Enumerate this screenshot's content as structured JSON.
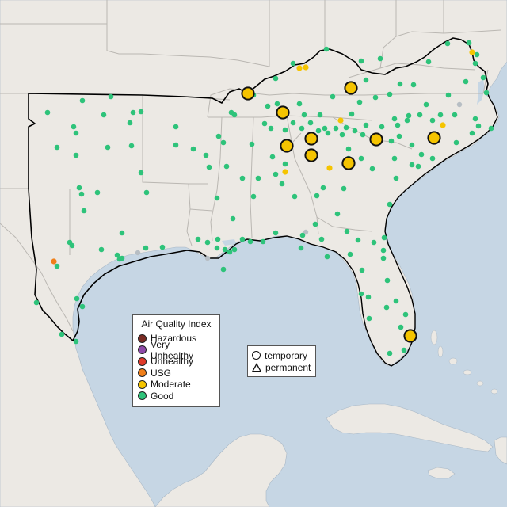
{
  "colors": {
    "water": "#c6d6e4",
    "land": "#ece9e4",
    "state_line": "#b9b6b1",
    "region_outline": "#000000",
    "good": "#2ec37a",
    "moderate": "#f5c400",
    "usg": "#f07f19",
    "unhealthy": "#e03a2a",
    "very_unhealthy": "#8e4aa8",
    "hazardous": "#7a2b23",
    "no_data": "#b7bec4"
  },
  "aqi_legend": {
    "title": "Air Quality Index",
    "items": [
      {
        "label": "Hazardous",
        "color": "#7a2b23"
      },
      {
        "label": "Very Unhealthy",
        "color": "#8e4aa8"
      },
      {
        "label": "Unhealthy",
        "color": "#e03a2a"
      },
      {
        "label": "USG",
        "color": "#f07f19"
      },
      {
        "label": "Moderate",
        "color": "#f5c400"
      },
      {
        "label": "Good",
        "color": "#2ec37a"
      }
    ]
  },
  "type_legend": {
    "items": [
      {
        "label": "temporary",
        "shape": "circle"
      },
      {
        "label": "permanent",
        "shape": "triangle"
      }
    ]
  }
}
